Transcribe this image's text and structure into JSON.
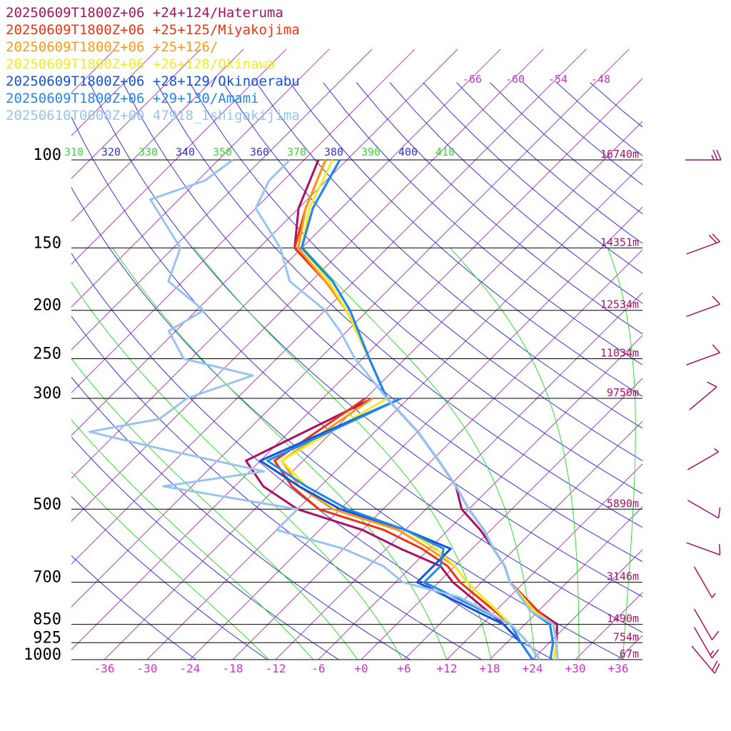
{
  "chart_data": {
    "type": "line",
    "title": "",
    "xlabel": "",
    "ylabel": "",
    "x_unit": "temperature (°C), skewed",
    "y_unit": "pressure (hPa), log scale",
    "pressure_levels": [
      {
        "p": 100,
        "label": "100",
        "height": "16740m"
      },
      {
        "p": 150,
        "label": "150",
        "height": "14351m"
      },
      {
        "p": 200,
        "label": "200",
        "height": "12534m"
      },
      {
        "p": 250,
        "label": "250",
        "height": "11034m"
      },
      {
        "p": 300,
        "label": "300",
        "height": "9750m"
      },
      {
        "p": 500,
        "label": "500",
        "height": "5890m"
      },
      {
        "p": 700,
        "label": "700",
        "height": "3146m"
      },
      {
        "p": 850,
        "label": "850",
        "height": "1490m"
      },
      {
        "p": 925,
        "label": "925",
        "height": "754m"
      },
      {
        "p": 1000,
        "label": "1000",
        "height": "67m"
      }
    ],
    "temperature_ticks": [
      "-36",
      "-30",
      "-24",
      "-18",
      "-12",
      "-6",
      "+0",
      "+6",
      "+12",
      "+18",
      "+24",
      "+30",
      "+36"
    ],
    "dry_adiabat_labels": [
      "-66",
      "-60",
      "-54",
      "-48"
    ],
    "theta_labels": [
      {
        "t": "310",
        "color": "#33dd33"
      },
      {
        "t": "320",
        "color": "#3333dd"
      },
      {
        "t": "330",
        "color": "#33dd33"
      },
      {
        "t": "340",
        "color": "#3333dd"
      },
      {
        "t": "350",
        "color": "#33dd33"
      },
      {
        "t": "360",
        "color": "#3333dd"
      },
      {
        "t": "370",
        "color": "#33dd33"
      },
      {
        "t": "380",
        "color": "#3333dd"
      },
      {
        "t": "390",
        "color": "#33dd33"
      },
      {
        "t": "400",
        "color": "#3333dd"
      },
      {
        "t": "410",
        "color": "#33dd33"
      }
    ],
    "series": [
      {
        "name": "20250609T1800Z+06 +24+124/Hateruma",
        "color": "#aa1166",
        "temperature": [
          [
            100,
            -76
          ],
          [
            125,
            -72
          ],
          [
            150,
            -67
          ],
          [
            175,
            -58
          ],
          [
            200,
            -51
          ],
          [
            250,
            -41
          ],
          [
            300,
            -33
          ],
          [
            350,
            -24
          ],
          [
            400,
            -17
          ],
          [
            450,
            -11
          ],
          [
            500,
            -7
          ],
          [
            550,
            -1.5
          ],
          [
            600,
            3
          ],
          [
            650,
            7
          ],
          [
            700,
            10
          ],
          [
            800,
            18
          ],
          [
            850,
            22.5
          ],
          [
            925,
            25
          ],
          [
            1000,
            27
          ]
        ],
        "dewpoint": [
          [
            300,
            -35
          ],
          [
            400,
            -44
          ],
          [
            450,
            -38
          ],
          [
            500,
            -30
          ],
          [
            550,
            -18
          ],
          [
            600,
            -10
          ],
          [
            650,
            -2
          ],
          [
            700,
            2
          ],
          [
            850,
            15
          ],
          [
            925,
            20
          ],
          [
            1000,
            24
          ]
        ]
      },
      {
        "name": "20250609T1800Z+06 +25+125/Miyakojima",
        "color": "#ee3311",
        "temperature": [
          [
            100,
            -75
          ],
          [
            125,
            -71
          ],
          [
            150,
            -67
          ],
          [
            175,
            -58
          ],
          [
            200,
            -51
          ],
          [
            250,
            -41
          ],
          [
            300,
            -33
          ],
          [
            350,
            -24
          ],
          [
            400,
            -17
          ],
          [
            450,
            -11
          ],
          [
            500,
            -6
          ],
          [
            550,
            -1
          ],
          [
            600,
            3
          ],
          [
            650,
            7
          ],
          [
            700,
            10
          ],
          [
            800,
            18
          ],
          [
            850,
            22
          ],
          [
            925,
            25
          ],
          [
            1000,
            27
          ]
        ],
        "dewpoint": [
          [
            300,
            -36
          ],
          [
            400,
            -40
          ],
          [
            450,
            -34
          ],
          [
            500,
            -27
          ],
          [
            550,
            -15
          ],
          [
            600,
            -7
          ],
          [
            650,
            -1
          ],
          [
            700,
            3
          ],
          [
            850,
            16
          ],
          [
            925,
            21
          ],
          [
            1000,
            25
          ]
        ]
      },
      {
        "name": "20250609T1800Z+06 +25+126/",
        "color": "#ff9911",
        "temperature": [
          [
            100,
            -75
          ],
          [
            125,
            -71
          ],
          [
            150,
            -66.5
          ],
          [
            175,
            -58
          ],
          [
            200,
            -51
          ],
          [
            250,
            -41
          ],
          [
            300,
            -33
          ],
          [
            350,
            -24
          ],
          [
            400,
            -17
          ],
          [
            450,
            -11
          ],
          [
            500,
            -6
          ],
          [
            550,
            -1
          ],
          [
            600,
            3
          ],
          [
            650,
            7
          ],
          [
            700,
            10
          ],
          [
            800,
            17.5
          ],
          [
            850,
            22
          ],
          [
            925,
            25
          ],
          [
            1000,
            27
          ]
        ],
        "dewpoint": [
          [
            300,
            -35
          ],
          [
            400,
            -39
          ],
          [
            450,
            -33
          ],
          [
            500,
            -25
          ],
          [
            550,
            -13
          ],
          [
            600,
            -6
          ],
          [
            650,
            0
          ],
          [
            700,
            4
          ],
          [
            850,
            16
          ],
          [
            925,
            21
          ],
          [
            1000,
            25
          ]
        ]
      },
      {
        "name": "20250609T1800Z+06 +26+128/Okinawa",
        "color": "#eeee22",
        "temperature": [
          [
            100,
            -74
          ],
          [
            125,
            -70.5
          ],
          [
            150,
            -66
          ],
          [
            175,
            -57.5
          ],
          [
            200,
            -51
          ],
          [
            250,
            -41
          ],
          [
            300,
            -33
          ],
          [
            350,
            -24
          ],
          [
            400,
            -17
          ],
          [
            450,
            -11
          ],
          [
            500,
            -6
          ],
          [
            550,
            -1
          ],
          [
            600,
            3
          ],
          [
            650,
            7
          ],
          [
            700,
            10
          ],
          [
            800,
            17.5
          ],
          [
            850,
            22
          ],
          [
            925,
            25
          ],
          [
            1000,
            27
          ]
        ],
        "dewpoint": [
          [
            300,
            -33
          ],
          [
            400,
            -39
          ],
          [
            450,
            -32
          ],
          [
            500,
            -23
          ],
          [
            550,
            -12
          ],
          [
            600,
            -5
          ],
          [
            650,
            0
          ],
          [
            700,
            4
          ],
          [
            850,
            16
          ],
          [
            925,
            21
          ],
          [
            1000,
            25
          ]
        ]
      },
      {
        "name": "20250609T1800Z+06 +28+129/Okinoerabu",
        "color": "#1155dd",
        "temperature": [
          [
            100,
            -73
          ],
          [
            125,
            -70
          ],
          [
            150,
            -66
          ],
          [
            175,
            -57
          ],
          [
            200,
            -50.5
          ],
          [
            250,
            -41
          ],
          [
            300,
            -33
          ],
          [
            350,
            -24
          ],
          [
            400,
            -17
          ],
          [
            450,
            -11
          ],
          [
            500,
            -6
          ],
          [
            550,
            -1
          ],
          [
            600,
            3
          ],
          [
            650,
            7
          ],
          [
            700,
            10
          ],
          [
            800,
            17
          ],
          [
            850,
            21.5
          ],
          [
            925,
            24.5
          ],
          [
            1000,
            26.5
          ]
        ],
        "dewpoint": [
          [
            300,
            -31
          ],
          [
            400,
            -42
          ],
          [
            450,
            -33
          ],
          [
            500,
            -24
          ],
          [
            550,
            -12
          ],
          [
            600,
            -3
          ],
          [
            650,
            -3
          ],
          [
            700,
            -3
          ],
          [
            850,
            15
          ],
          [
            925,
            20
          ],
          [
            1000,
            24
          ]
        ]
      },
      {
        "name": "20250609T1800Z+06 +29+130/Amami",
        "color": "#2288ee",
        "temperature": [
          [
            100,
            -73
          ],
          [
            125,
            -70
          ],
          [
            150,
            -66
          ],
          [
            175,
            -57
          ],
          [
            200,
            -50.5
          ],
          [
            250,
            -41
          ],
          [
            300,
            -33
          ],
          [
            350,
            -24
          ],
          [
            400,
            -17
          ],
          [
            450,
            -11
          ],
          [
            500,
            -6
          ],
          [
            550,
            -1
          ],
          [
            600,
            3
          ],
          [
            650,
            7
          ],
          [
            700,
            10
          ],
          [
            800,
            17
          ],
          [
            850,
            21.5
          ],
          [
            925,
            24.5
          ],
          [
            1000,
            26.5
          ]
        ],
        "dewpoint": [
          [
            300,
            -31
          ],
          [
            400,
            -41
          ],
          [
            450,
            -32
          ],
          [
            500,
            -23
          ],
          [
            550,
            -12
          ],
          [
            600,
            -4
          ],
          [
            650,
            -2
          ],
          [
            700,
            -2
          ],
          [
            850,
            16
          ],
          [
            925,
            20
          ],
          [
            1000,
            24
          ]
        ]
      },
      {
        "name": "20250610T0000Z+00 47918_Ishigakijima",
        "color": "#99c4f0",
        "temperature": [
          [
            100,
            -80
          ],
          [
            110,
            -80
          ],
          [
            125,
            -78
          ],
          [
            150,
            -69
          ],
          [
            175,
            -63
          ],
          [
            200,
            -54
          ],
          [
            220,
            -49
          ],
          [
            250,
            -43
          ],
          [
            300,
            -33
          ],
          [
            350,
            -24
          ],
          [
            400,
            -17
          ],
          [
            450,
            -11
          ],
          [
            500,
            -6
          ],
          [
            550,
            -1
          ],
          [
            600,
            3
          ],
          [
            650,
            7
          ],
          [
            700,
            10
          ],
          [
            800,
            17
          ],
          [
            850,
            22
          ],
          [
            925,
            25
          ],
          [
            1000,
            27.5
          ]
        ],
        "dewpoint": [
          [
            100,
            -88
          ],
          [
            110,
            -89
          ],
          [
            120,
            -94
          ],
          [
            150,
            -83
          ],
          [
            175,
            -80
          ],
          [
            200,
            -71
          ],
          [
            220,
            -73
          ],
          [
            250,
            -67
          ],
          [
            270,
            -55
          ],
          [
            300,
            -61
          ],
          [
            330,
            -62
          ],
          [
            350,
            -70
          ],
          [
            380,
            -57
          ],
          [
            420,
            -40
          ],
          [
            450,
            -52
          ],
          [
            500,
            -30
          ],
          [
            550,
            -30
          ],
          [
            600,
            -18
          ],
          [
            650,
            -10
          ],
          [
            700,
            -5
          ],
          [
            750,
            5
          ],
          [
            850,
            16
          ],
          [
            925,
            21
          ],
          [
            1000,
            25
          ]
        ]
      }
    ],
    "wind_barbs": [
      {
        "p": 100,
        "dir_deg": 270,
        "speed_kt": 25,
        "color": "#aa1166"
      },
      {
        "p": 150,
        "dir_deg": 250,
        "speed_kt": 20,
        "color": "#aa1166"
      },
      {
        "p": 200,
        "dir_deg": 250,
        "speed_kt": 10,
        "color": "#aa1166"
      },
      {
        "p": 250,
        "dir_deg": 250,
        "speed_kt": 10,
        "color": "#aa1166"
      },
      {
        "p": 300,
        "dir_deg": 230,
        "speed_kt": 10,
        "color": "#aa1166"
      },
      {
        "p": 400,
        "dir_deg": 240,
        "speed_kt": 5,
        "color": "#aa1166"
      },
      {
        "p": 500,
        "dir_deg": 300,
        "speed_kt": 10,
        "color": "#aa1166"
      },
      {
        "p": 600,
        "dir_deg": 290,
        "speed_kt": 10,
        "color": "#aa1166"
      },
      {
        "p": 700,
        "dir_deg": 330,
        "speed_kt": 5,
        "color": "#aa1166"
      },
      {
        "p": 850,
        "dir_deg": 330,
        "speed_kt": 10,
        "color": "#aa1166"
      },
      {
        "p": 925,
        "dir_deg": 330,
        "speed_kt": 15,
        "color": "#aa1166"
      },
      {
        "p": 1000,
        "dir_deg": 320,
        "speed_kt": 20,
        "color": "#aa1166"
      }
    ],
    "colors": {
      "isobar": "#000000",
      "isotherm": "#cc33cc",
      "dry_adiabat": "#3333dd",
      "moist_adiabat": "#33dd33",
      "label": "#cc33cc",
      "height_label": "#aa1166"
    }
  }
}
